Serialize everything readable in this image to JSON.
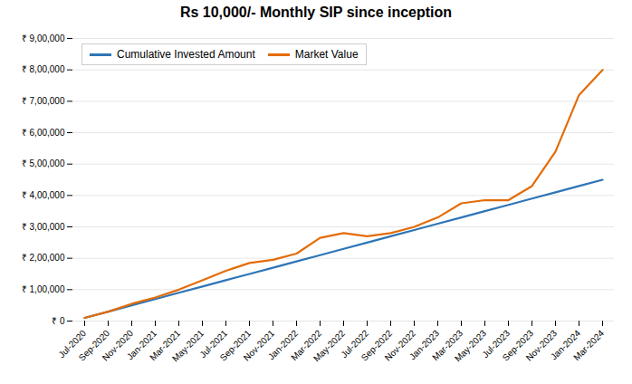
{
  "chart_data": {
    "type": "line",
    "title": "Rs 10,000/- Monthly SIP since inception",
    "categories": [
      "Jul-2020",
      "Sep-2020",
      "Nov-2020",
      "Jan-2021",
      "Mar-2021",
      "May-2021",
      "Jul-2021",
      "Sep-2021",
      "Nov-2021",
      "Jan-2022",
      "Mar-2022",
      "May-2022",
      "Jul-2022",
      "Sep-2022",
      "Nov-2022",
      "Jan-2023",
      "Mar-2023",
      "May-2023",
      "Jul-2023",
      "Sep-2023",
      "Nov-2023",
      "Jan-2024",
      "Mar-2024"
    ],
    "series": [
      {
        "name": "Cumulative Invested Amount",
        "color": "#2e75b6",
        "values": [
          10000,
          30000,
          50000,
          70000,
          90000,
          110000,
          130000,
          150000,
          170000,
          190000,
          210000,
          230000,
          250000,
          270000,
          290000,
          310000,
          330000,
          350000,
          370000,
          390000,
          410000,
          430000,
          450000
        ]
      },
      {
        "name": "Market Value",
        "color": "#e36c09",
        "values": [
          10000,
          30000,
          55000,
          75000,
          100000,
          130000,
          160000,
          185000,
          195000,
          215000,
          265000,
          280000,
          270000,
          280000,
          300000,
          330000,
          375000,
          385000,
          385000,
          430000,
          540000,
          720000,
          800000
        ]
      }
    ],
    "ylim": [
      0,
      900000
    ],
    "yticks": [
      {
        "value": 0,
        "label": "₹ 0"
      },
      {
        "value": 100000,
        "label": "₹ 1,00,000"
      },
      {
        "value": 200000,
        "label": "₹ 2,00,000"
      },
      {
        "value": 300000,
        "label": "₹ 3,00,000"
      },
      {
        "value": 400000,
        "label": "₹ 4,00,000"
      },
      {
        "value": 500000,
        "label": "₹ 5,00,000"
      },
      {
        "value": 600000,
        "label": "₹ 6,00,000"
      },
      {
        "value": 700000,
        "label": "₹ 7,00,000"
      },
      {
        "value": 800000,
        "label": "₹ 8,00,000"
      },
      {
        "value": 900000,
        "label": "₹ 9,00,000"
      }
    ],
    "grid": true,
    "legend": "upper left"
  }
}
